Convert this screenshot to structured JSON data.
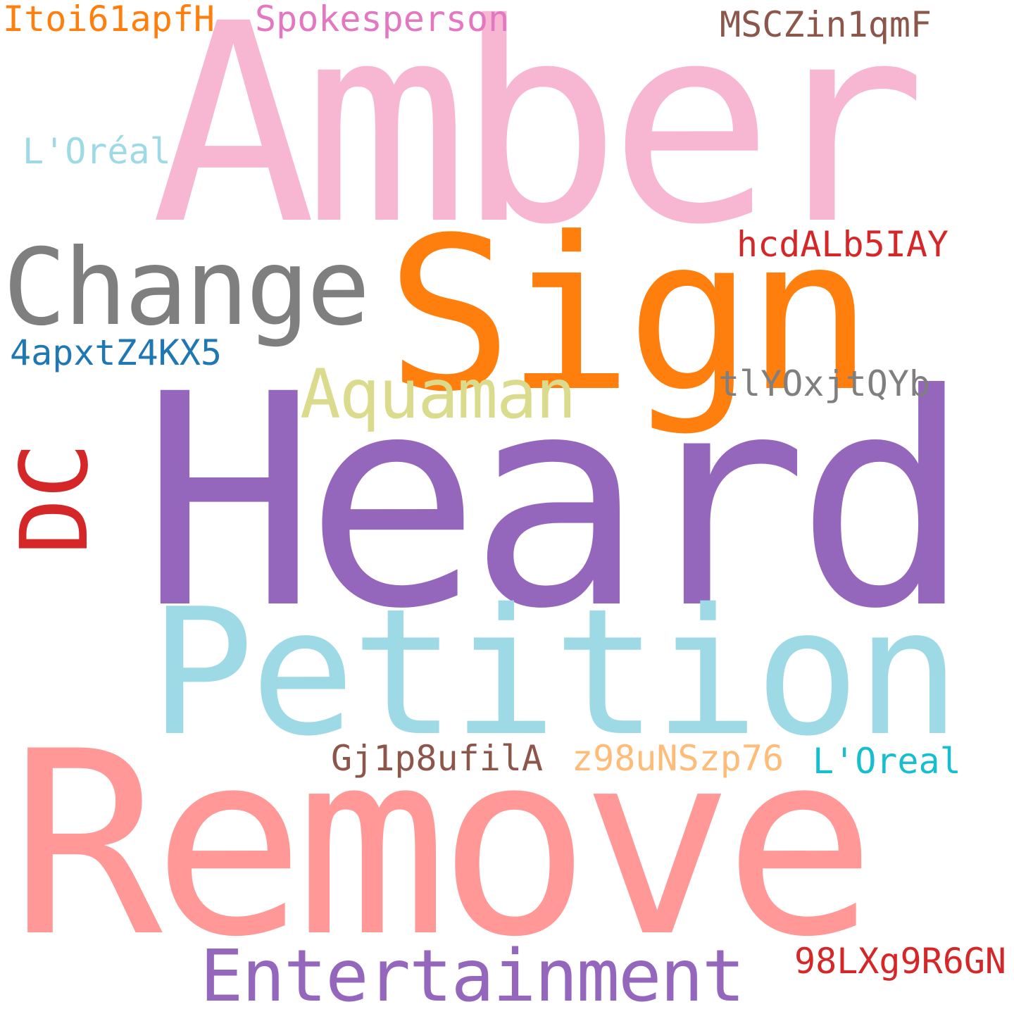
{
  "words": {
    "amber": {
      "text": "Amber",
      "color": "#f7b6d2"
    },
    "sign": {
      "text": "Sign",
      "color": "#ff7f0e"
    },
    "heard": {
      "text": "Heard",
      "color": "#9467bd"
    },
    "petition": {
      "text": "Petition",
      "color": "#9edae5"
    },
    "remove": {
      "text": "Remove",
      "color": "#ff9896"
    },
    "change": {
      "text": "Change",
      "color": "#7f7f7f"
    },
    "aquaman": {
      "text": "Aquaman",
      "color": "#dbdb8d"
    },
    "entertainment": {
      "text": "Entertainment",
      "color": "#9467bd"
    },
    "dc": {
      "text": "DC",
      "color": "#d62728"
    },
    "itoi": {
      "text": "Itoi61apfH",
      "color": "#ff7f0e"
    },
    "spokesperson": {
      "text": "Spokesperson",
      "color": "#e377c2"
    },
    "mscz": {
      "text": "MSCZin1qmF",
      "color": "#8c564b"
    },
    "loreal_accent": {
      "text": "L'Oréal",
      "color": "#9edae5"
    },
    "hcda": {
      "text": "hcdALb5IAY",
      "color": "#d62728"
    },
    "fourap": {
      "text": "4apxtZ4KX5",
      "color": "#1f77b4"
    },
    "tly": {
      "text": "tlYOxjtQYb",
      "color": "#7f7f7f"
    },
    "gj1": {
      "text": "Gj1p8ufilA",
      "color": "#8c564b"
    },
    "z98": {
      "text": "z98uNSzp76",
      "color": "#ffbb78"
    },
    "loreal_plain": {
      "text": "L'Oreal",
      "color": "#17becf"
    },
    "ninety8": {
      "text": "98LXg9R6GN",
      "color": "#d62728"
    }
  }
}
